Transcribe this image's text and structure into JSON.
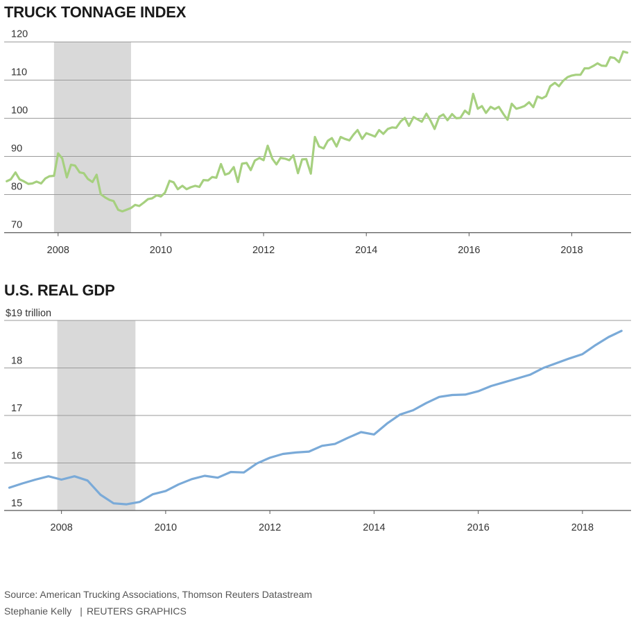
{
  "chart_data": [
    {
      "type": "line",
      "title": "TRUCK TONNAGE INDEX",
      "ylabel": "",
      "ylim": [
        70,
        120
      ],
      "xlim": [
        2006.95,
        2019.1
      ],
      "yticks": [
        120,
        110,
        100,
        90,
        80,
        70
      ],
      "xticks": [
        "2008",
        "2010",
        "2012",
        "2014",
        "2016",
        "2018"
      ],
      "recession": {
        "start": 2007.92,
        "end": 2009.42
      },
      "grid": true,
      "colors": {
        "line": "#a6d07f",
        "recession": "#d9d9d9",
        "grid": "#9a9a9a"
      },
      "series": [
        {
          "x": [
            2007.0,
            2007.08,
            2007.17,
            2007.25,
            2007.33,
            2007.42,
            2007.5,
            2007.58,
            2007.67,
            2007.75,
            2007.83,
            2007.92,
            2008.0,
            2008.08,
            2008.17,
            2008.25,
            2008.33,
            2008.42,
            2008.5,
            2008.58,
            2008.67,
            2008.75,
            2008.83,
            2008.92,
            2009.0,
            2009.08,
            2009.17,
            2009.25,
            2009.33,
            2009.42,
            2009.5,
            2009.58,
            2009.67,
            2009.75,
            2009.83,
            2009.92,
            2010.0,
            2010.08,
            2010.17,
            2010.25,
            2010.33,
            2010.42,
            2010.5,
            2010.58,
            2010.67,
            2010.75,
            2010.83,
            2010.92,
            2011.0,
            2011.08,
            2011.17,
            2011.25,
            2011.33,
            2011.42,
            2011.5,
            2011.58,
            2011.67,
            2011.75,
            2011.83,
            2011.92,
            2012.0,
            2012.08,
            2012.17,
            2012.25,
            2012.33,
            2012.42,
            2012.5,
            2012.58,
            2012.67,
            2012.75,
            2012.83,
            2012.92,
            2013.0,
            2013.08,
            2013.17,
            2013.25,
            2013.33,
            2013.42,
            2013.5,
            2013.58,
            2013.67,
            2013.75,
            2013.83,
            2013.92,
            2014.0,
            2014.08,
            2014.17,
            2014.25,
            2014.33,
            2014.42,
            2014.5,
            2014.58,
            2014.67,
            2014.75,
            2014.83,
            2014.92,
            2015.0,
            2015.08,
            2015.17,
            2015.25,
            2015.33,
            2015.42,
            2015.5,
            2015.58,
            2015.67,
            2015.75,
            2015.83,
            2015.92,
            2016.0,
            2016.08,
            2016.17,
            2016.25,
            2016.33,
            2016.42,
            2016.5,
            2016.58,
            2016.67,
            2016.75,
            2016.83,
            2016.92,
            2017.0,
            2017.08,
            2017.17,
            2017.25,
            2017.33,
            2017.42,
            2017.5,
            2017.58,
            2017.67,
            2017.75,
            2017.83,
            2017.92,
            2018.0,
            2018.08,
            2018.17,
            2018.25,
            2018.33,
            2018.42,
            2018.5,
            2018.58,
            2018.67,
            2018.75,
            2018.83,
            2018.92,
            2019.0,
            2019.08
          ],
          "values": [
            83.5,
            84.0,
            85.8,
            84.0,
            83.5,
            82.8,
            82.9,
            83.4,
            82.9,
            84.2,
            84.8,
            84.9,
            90.8,
            89.5,
            84.5,
            87.8,
            87.6,
            85.8,
            85.6,
            84.1,
            83.3,
            85.2,
            80.1,
            79.2,
            78.6,
            78.3,
            76.0,
            75.6,
            76.0,
            76.5,
            77.3,
            77.0,
            77.9,
            78.8,
            79.0,
            79.8,
            79.5,
            80.5,
            83.6,
            83.2,
            81.4,
            82.3,
            81.4,
            81.9,
            82.3,
            82.0,
            83.8,
            83.7,
            84.6,
            84.4,
            88.0,
            85.2,
            85.6,
            87.2,
            83.3,
            88.1,
            88.3,
            86.4,
            88.9,
            89.6,
            89.0,
            92.8,
            89.4,
            87.9,
            89.6,
            89.4,
            89.0,
            90.3,
            85.6,
            89.2,
            89.3,
            85.5,
            95.1,
            92.6,
            92.1,
            94.1,
            94.8,
            92.6,
            95.1,
            94.6,
            94.2,
            95.7,
            96.9,
            94.6,
            96.1,
            95.7,
            95.2,
            96.9,
            95.9,
            97.2,
            97.6,
            97.5,
            99.2,
            100.1,
            98.0,
            100.3,
            99.7,
            99.1,
            101.2,
            99.4,
            97.2,
            100.4,
            101.0,
            99.5,
            101.1,
            100.0,
            100.1,
            102.0,
            101.1,
            106.4,
            102.5,
            103.2,
            101.4,
            103.0,
            102.4,
            103.0,
            101.1,
            99.6,
            103.8,
            102.5,
            102.8,
            103.2,
            104.2,
            102.9,
            105.7,
            105.2,
            105.8,
            108.4,
            109.3,
            108.4,
            109.8,
            110.8,
            111.2,
            111.4,
            111.4,
            113.1,
            113.1,
            113.7,
            114.4,
            113.8,
            113.7,
            116.0,
            115.8,
            114.7,
            117.5,
            117.2
          ]
        }
      ]
    },
    {
      "type": "line",
      "title": "U.S. REAL GDP",
      "ylabel": "$19  trillion",
      "ylim": [
        15,
        19
      ],
      "xlim": [
        2006.9,
        2018.88
      ],
      "yticks": [
        19,
        18,
        17,
        16,
        15
      ],
      "xticks": [
        "2008",
        "2010",
        "2012",
        "2014",
        "2016",
        "2018"
      ],
      "recession": {
        "start": 2007.92,
        "end": 2009.42
      },
      "grid": true,
      "colors": {
        "line": "#7aaad8",
        "recession": "#d9d9d9",
        "grid": "#9a9a9a"
      },
      "series": [
        {
          "x": [
            2007.0,
            2007.25,
            2007.5,
            2007.75,
            2008.0,
            2008.25,
            2008.5,
            2008.75,
            2009.0,
            2009.25,
            2009.5,
            2009.75,
            2010.0,
            2010.25,
            2010.5,
            2010.75,
            2011.0,
            2011.25,
            2011.5,
            2011.75,
            2012.0,
            2012.25,
            2012.5,
            2012.75,
            2013.0,
            2013.25,
            2013.5,
            2013.75,
            2014.0,
            2014.25,
            2014.5,
            2014.75,
            2015.0,
            2015.25,
            2015.5,
            2015.75,
            2016.0,
            2016.25,
            2016.5,
            2016.75,
            2017.0,
            2017.25,
            2017.5,
            2017.75,
            2018.0,
            2018.25,
            2018.5,
            2018.75
          ],
          "values": [
            15.48,
            15.57,
            15.65,
            15.72,
            15.65,
            15.72,
            15.63,
            15.33,
            15.15,
            15.13,
            15.18,
            15.34,
            15.41,
            15.55,
            15.66,
            15.73,
            15.69,
            15.81,
            15.8,
            15.99,
            16.11,
            16.19,
            16.22,
            16.24,
            16.36,
            16.4,
            16.53,
            16.65,
            16.6,
            16.83,
            17.02,
            17.11,
            17.26,
            17.39,
            17.43,
            17.44,
            17.51,
            17.62,
            17.7,
            17.78,
            17.86,
            18.0,
            18.1,
            18.2,
            18.29,
            18.48,
            18.65,
            18.78
          ]
        }
      ]
    }
  ],
  "titles": {
    "truck": "TRUCK TONNAGE INDEX",
    "gdp": "U.S. REAL GDP"
  },
  "footer": {
    "source": "Source: American Trucking Associations, Thomson Reuters Datastream",
    "author": "Stephanie Kelly",
    "separator": "|",
    "brand": "REUTERS GRAPHICS"
  }
}
